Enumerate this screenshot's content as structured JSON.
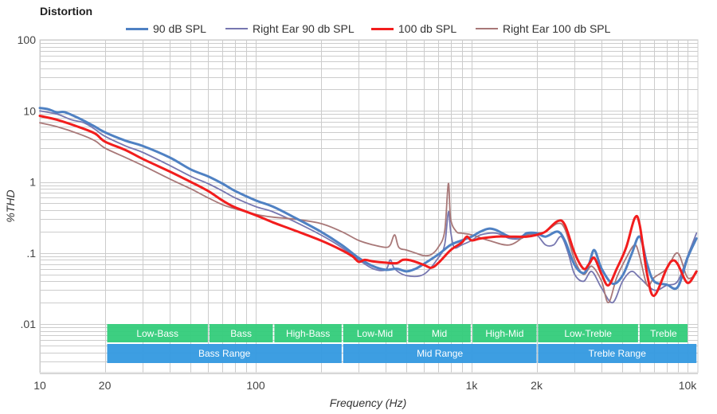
{
  "chart_data": {
    "type": "line",
    "title": "Distortion",
    "xlabel": "Frequency (Hz)",
    "ylabel": "%THD",
    "xscale": "log",
    "yscale": "log",
    "xlim": [
      10,
      11000
    ],
    "ylim": [
      0.002,
      100
    ],
    "grid": true,
    "legend_position": "top-center",
    "x_ticks": [
      {
        "value": 10,
        "label": "10"
      },
      {
        "value": 20,
        "label": "20"
      },
      {
        "value": 100,
        "label": "100"
      },
      {
        "value": 1000,
        "label": "1k"
      },
      {
        "value": 2000,
        "label": "2k"
      },
      {
        "value": 10000,
        "label": "10k"
      }
    ],
    "y_ticks": [
      {
        "value": 100,
        "label": "100"
      },
      {
        "value": 10,
        "label": "10"
      },
      {
        "value": 1,
        "label": "1"
      },
      {
        "value": 0.1,
        "label": ".1"
      },
      {
        "value": 0.01,
        "label": ".01"
      }
    ],
    "series": [
      {
        "name": "90 dB SPL",
        "color": "#4f81c3",
        "weight": "thick",
        "points": [
          [
            10,
            11
          ],
          [
            11,
            10.5
          ],
          [
            12,
            9.5
          ],
          [
            13,
            9.6
          ],
          [
            15,
            8
          ],
          [
            18,
            6
          ],
          [
            20,
            5
          ],
          [
            25,
            3.8
          ],
          [
            30,
            3.2
          ],
          [
            40,
            2.2
          ],
          [
            50,
            1.5
          ],
          [
            60,
            1.2
          ],
          [
            70,
            0.95
          ],
          [
            80,
            0.75
          ],
          [
            100,
            0.55
          ],
          [
            120,
            0.45
          ],
          [
            150,
            0.32
          ],
          [
            200,
            0.2
          ],
          [
            250,
            0.13
          ],
          [
            300,
            0.085
          ],
          [
            350,
            0.065
          ],
          [
            400,
            0.058
          ],
          [
            450,
            0.06
          ],
          [
            500,
            0.055
          ],
          [
            550,
            0.06
          ],
          [
            600,
            0.07
          ],
          [
            700,
            0.095
          ],
          [
            800,
            0.13
          ],
          [
            900,
            0.15
          ],
          [
            1000,
            0.17
          ],
          [
            1100,
            0.2
          ],
          [
            1200,
            0.22
          ],
          [
            1300,
            0.21
          ],
          [
            1500,
            0.17
          ],
          [
            1700,
            0.17
          ],
          [
            1800,
            0.19
          ],
          [
            2000,
            0.19
          ],
          [
            2200,
            0.17
          ],
          [
            2500,
            0.2
          ],
          [
            2700,
            0.15
          ],
          [
            3000,
            0.068
          ],
          [
            3300,
            0.052
          ],
          [
            3500,
            0.07
          ],
          [
            3700,
            0.11
          ],
          [
            4000,
            0.06
          ],
          [
            4500,
            0.037
          ],
          [
            5000,
            0.048
          ],
          [
            5500,
            0.095
          ],
          [
            6000,
            0.17
          ],
          [
            6500,
            0.07
          ],
          [
            7000,
            0.04
          ],
          [
            8000,
            0.036
          ],
          [
            9000,
            0.033
          ],
          [
            10000,
            0.085
          ],
          [
            11000,
            0.16
          ]
        ]
      },
      {
        "name": "Right Ear 90 db SPL",
        "color": "#7777b0",
        "weight": "thin",
        "points": [
          [
            10,
            10
          ],
          [
            12,
            9
          ],
          [
            14,
            7.5
          ],
          [
            16,
            6.8
          ],
          [
            18,
            5.5
          ],
          [
            20,
            4.4
          ],
          [
            25,
            3.2
          ],
          [
            30,
            2.6
          ],
          [
            40,
            1.7
          ],
          [
            50,
            1.2
          ],
          [
            60,
            0.95
          ],
          [
            70,
            0.75
          ],
          [
            80,
            0.6
          ],
          [
            100,
            0.45
          ],
          [
            120,
            0.38
          ],
          [
            150,
            0.28
          ],
          [
            200,
            0.18
          ],
          [
            250,
            0.12
          ],
          [
            300,
            0.08
          ],
          [
            350,
            0.06
          ],
          [
            400,
            0.058
          ],
          [
            420,
            0.08
          ],
          [
            440,
            0.06
          ],
          [
            500,
            0.048
          ],
          [
            600,
            0.05
          ],
          [
            700,
            0.085
          ],
          [
            750,
            0.13
          ],
          [
            780,
            0.38
          ],
          [
            800,
            0.2
          ],
          [
            830,
            0.12
          ],
          [
            900,
            0.13
          ],
          [
            1000,
            0.15
          ],
          [
            1100,
            0.18
          ],
          [
            1300,
            0.19
          ],
          [
            1500,
            0.16
          ],
          [
            1700,
            0.16
          ],
          [
            1800,
            0.18
          ],
          [
            2000,
            0.18
          ],
          [
            2200,
            0.13
          ],
          [
            2400,
            0.13
          ],
          [
            2600,
            0.17
          ],
          [
            2800,
            0.1
          ],
          [
            3000,
            0.05
          ],
          [
            3300,
            0.04
          ],
          [
            3600,
            0.055
          ],
          [
            4000,
            0.032
          ],
          [
            4500,
            0.02
          ],
          [
            5000,
            0.04
          ],
          [
            5500,
            0.055
          ],
          [
            6000,
            0.045
          ],
          [
            7000,
            0.03
          ],
          [
            8000,
            0.035
          ],
          [
            9000,
            0.04
          ],
          [
            10000,
            0.09
          ],
          [
            11000,
            0.19
          ]
        ]
      },
      {
        "name": "100 db SPL",
        "color": "#f21d1d",
        "weight": "thick",
        "points": [
          [
            10,
            8.5
          ],
          [
            12,
            7.5
          ],
          [
            15,
            6
          ],
          [
            18,
            4.8
          ],
          [
            20,
            3.7
          ],
          [
            25,
            2.8
          ],
          [
            30,
            2.1
          ],
          [
            40,
            1.4
          ],
          [
            50,
            1.0
          ],
          [
            60,
            0.75
          ],
          [
            70,
            0.55
          ],
          [
            80,
            0.44
          ],
          [
            100,
            0.34
          ],
          [
            120,
            0.27
          ],
          [
            150,
            0.21
          ],
          [
            200,
            0.15
          ],
          [
            250,
            0.11
          ],
          [
            280,
            0.09
          ],
          [
            300,
            0.075
          ],
          [
            320,
            0.08
          ],
          [
            350,
            0.076
          ],
          [
            400,
            0.073
          ],
          [
            450,
            0.072
          ],
          [
            480,
            0.08
          ],
          [
            520,
            0.079
          ],
          [
            600,
            0.068
          ],
          [
            650,
            0.062
          ],
          [
            700,
            0.072
          ],
          [
            800,
            0.11
          ],
          [
            900,
            0.14
          ],
          [
            950,
            0.17
          ],
          [
            1000,
            0.15
          ],
          [
            1100,
            0.16
          ],
          [
            1300,
            0.17
          ],
          [
            1500,
            0.17
          ],
          [
            1800,
            0.17
          ],
          [
            2000,
            0.18
          ],
          [
            2200,
            0.2
          ],
          [
            2500,
            0.28
          ],
          [
            2700,
            0.25
          ],
          [
            3000,
            0.1
          ],
          [
            3300,
            0.06
          ],
          [
            3500,
            0.07
          ],
          [
            3700,
            0.085
          ],
          [
            4000,
            0.05
          ],
          [
            4300,
            0.035
          ],
          [
            4700,
            0.06
          ],
          [
            5200,
            0.12
          ],
          [
            5700,
            0.31
          ],
          [
            6000,
            0.25
          ],
          [
            6500,
            0.05
          ],
          [
            7000,
            0.025
          ],
          [
            8000,
            0.06
          ],
          [
            8500,
            0.078
          ],
          [
            9000,
            0.07
          ],
          [
            10000,
            0.038
          ],
          [
            11000,
            0.055
          ]
        ]
      },
      {
        "name": "Right Ear 100 db SPL",
        "color": "#a87878",
        "weight": "thin",
        "points": [
          [
            10,
            6.8
          ],
          [
            12,
            6
          ],
          [
            15,
            4.8
          ],
          [
            18,
            3.8
          ],
          [
            20,
            3.0
          ],
          [
            25,
            2.2
          ],
          [
            30,
            1.7
          ],
          [
            40,
            1.1
          ],
          [
            50,
            0.8
          ],
          [
            60,
            0.6
          ],
          [
            70,
            0.48
          ],
          [
            80,
            0.42
          ],
          [
            100,
            0.35
          ],
          [
            120,
            0.32
          ],
          [
            150,
            0.3
          ],
          [
            200,
            0.26
          ],
          [
            250,
            0.2
          ],
          [
            300,
            0.15
          ],
          [
            350,
            0.13
          ],
          [
            400,
            0.12
          ],
          [
            420,
            0.13
          ],
          [
            440,
            0.18
          ],
          [
            460,
            0.12
          ],
          [
            500,
            0.11
          ],
          [
            550,
            0.1
          ],
          [
            600,
            0.092
          ],
          [
            650,
            0.095
          ],
          [
            700,
            0.12
          ],
          [
            750,
            0.2
          ],
          [
            780,
            0.95
          ],
          [
            800,
            0.3
          ],
          [
            850,
            0.2
          ],
          [
            900,
            0.19
          ],
          [
            1000,
            0.18
          ],
          [
            1200,
            0.15
          ],
          [
            1500,
            0.13
          ],
          [
            1800,
            0.18
          ],
          [
            2000,
            0.19
          ],
          [
            2200,
            0.2
          ],
          [
            2500,
            0.26
          ],
          [
            2700,
            0.22
          ],
          [
            3000,
            0.08
          ],
          [
            3300,
            0.05
          ],
          [
            3600,
            0.065
          ],
          [
            4000,
            0.04
          ],
          [
            4300,
            0.02
          ],
          [
            4700,
            0.045
          ],
          [
            5200,
            0.085
          ],
          [
            5700,
            0.13
          ],
          [
            6000,
            0.09
          ],
          [
            6500,
            0.035
          ],
          [
            7000,
            0.045
          ],
          [
            8000,
            0.06
          ],
          [
            9000,
            0.1
          ],
          [
            10000,
            0.045
          ],
          [
            11000,
            0.052
          ]
        ]
      }
    ],
    "bands_top": [
      {
        "label": "Low-Bass",
        "from": 20.5,
        "to": 60
      },
      {
        "label": "Bass",
        "from": 61,
        "to": 120
      },
      {
        "label": "High-Bass",
        "from": 122,
        "to": 250
      },
      {
        "label": "Low-Mid",
        "from": 254,
        "to": 500
      },
      {
        "label": "Mid",
        "from": 508,
        "to": 990
      },
      {
        "label": "High-Mid",
        "from": 1010,
        "to": 2000
      },
      {
        "label": "Low-Treble",
        "from": 2030,
        "to": 5900
      },
      {
        "label": "Treble",
        "from": 6000,
        "to": 10000
      }
    ],
    "bands_bottom": [
      {
        "label": "Bass Range",
        "from": 20.5,
        "to": 250
      },
      {
        "label": "Mid Range",
        "from": 254,
        "to": 2000
      },
      {
        "label": "Treble Range",
        "from": 2030,
        "to": 11000
      }
    ],
    "band_colors": {
      "top": "#33cc7a",
      "bottom": "#3399e0"
    }
  }
}
